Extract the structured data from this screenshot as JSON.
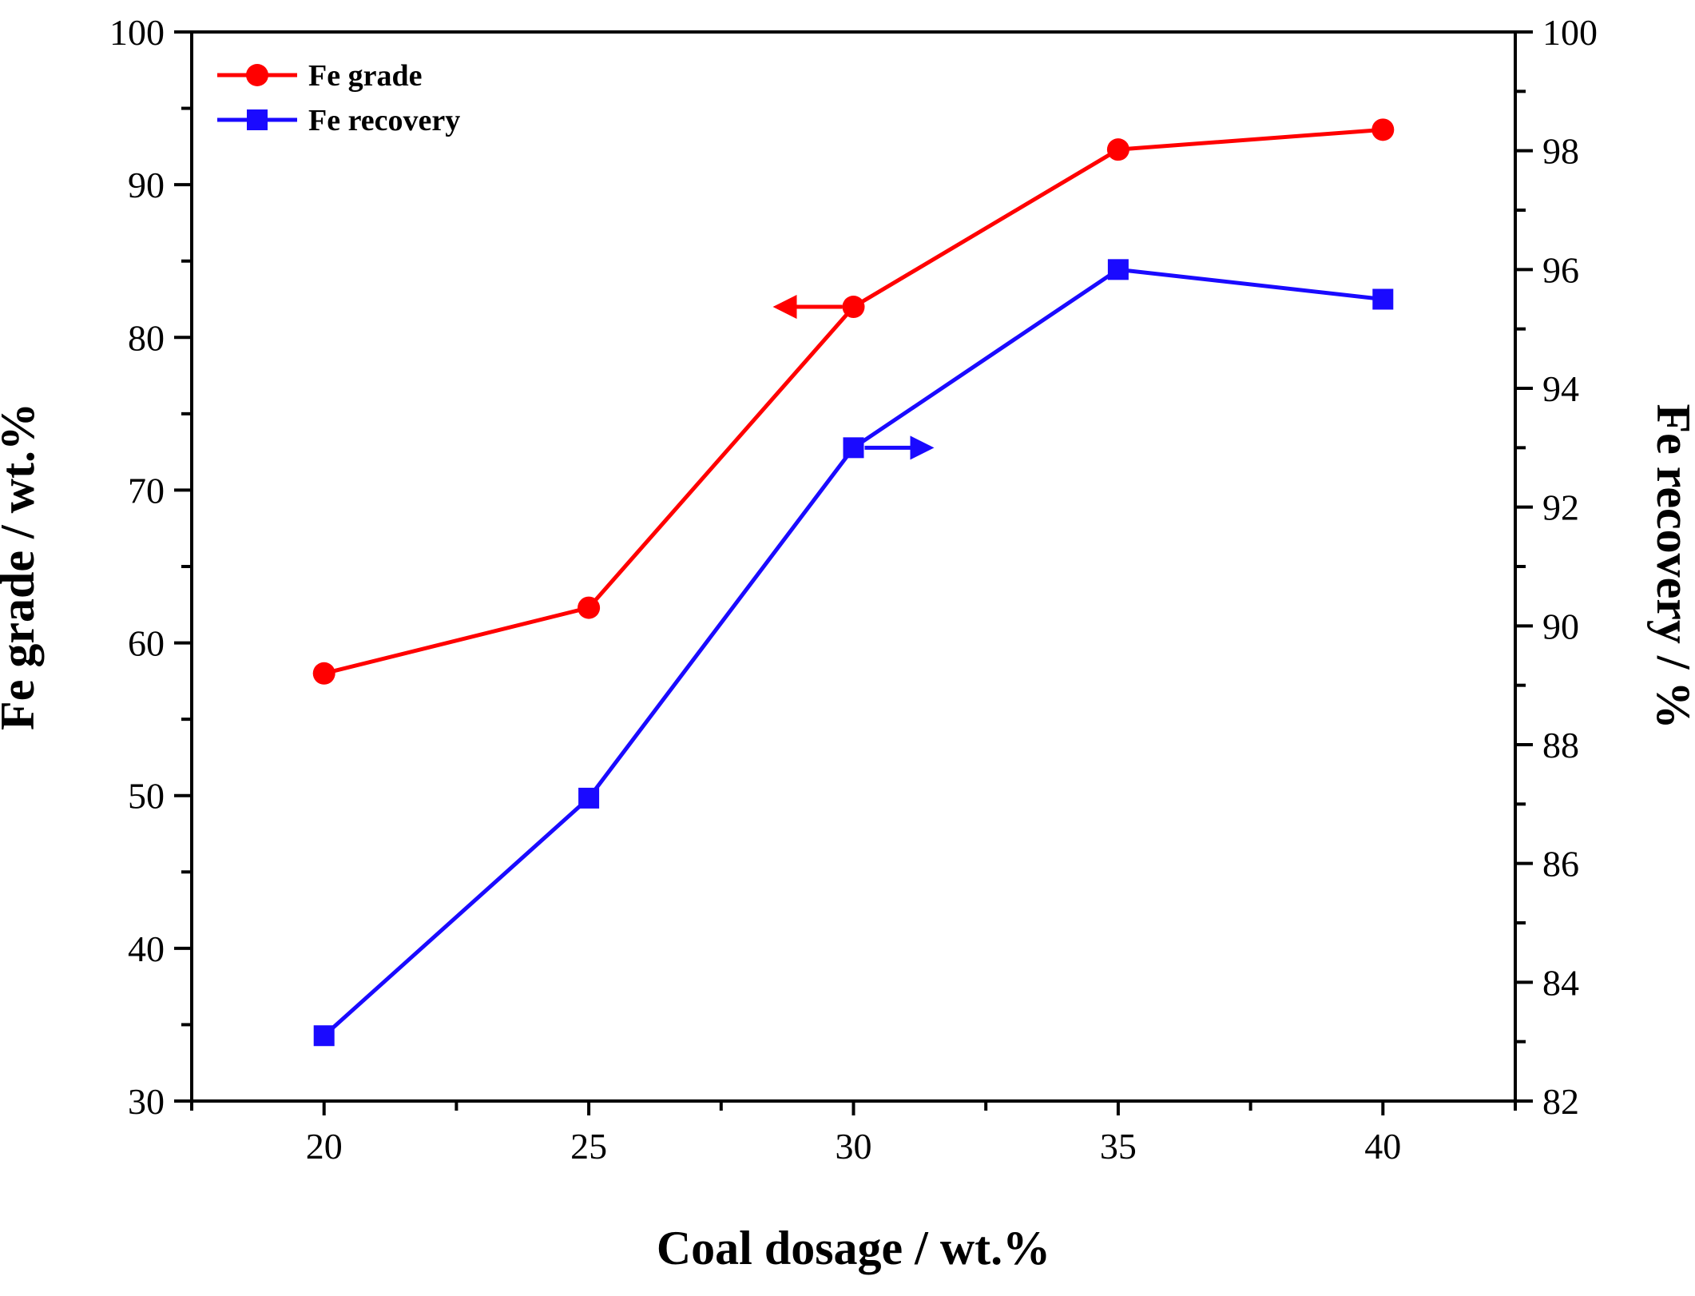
{
  "chart_data": {
    "type": "line",
    "xlabel": "Coal dosage / wt.%",
    "ylabel": "Fe grade / wt.%",
    "y2label": "Fe recovery / %",
    "x": [
      20,
      25,
      30,
      35,
      40
    ],
    "xlim": [
      17.5,
      42.5
    ],
    "xticks": [
      20,
      25,
      30,
      35,
      40
    ],
    "ylim": [
      30,
      100
    ],
    "yticks": [
      30,
      40,
      50,
      60,
      70,
      80,
      90,
      100
    ],
    "y2lim": [
      82,
      100
    ],
    "y2ticks": [
      82,
      84,
      86,
      88,
      90,
      92,
      94,
      96,
      98,
      100
    ],
    "legend_position": "top-left",
    "grid": false,
    "series": [
      {
        "name": "Fe grade",
        "axis": "left",
        "marker": "circle",
        "color": "#ff0000",
        "values": [
          58.0,
          62.3,
          82.0,
          92.3,
          93.6
        ]
      },
      {
        "name": "Fe recovery",
        "axis": "right",
        "marker": "square",
        "color": "#1a0aff",
        "values": [
          83.1,
          87.1,
          93.0,
          96.0,
          95.5
        ]
      }
    ]
  }
}
